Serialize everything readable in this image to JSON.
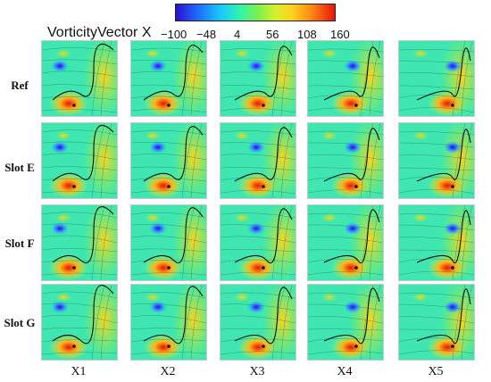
{
  "colorbar": {
    "title": "VorticityVector X",
    "ticks": [
      "−100",
      "−48",
      "4",
      "56",
      "108",
      "160"
    ],
    "colors": [
      "#2a0fd0",
      "#1e6cff",
      "#19c8ff",
      "#2ef2b0",
      "#7cf24a",
      "#d8f02a",
      "#ffd21e",
      "#ff8a12",
      "#e8140c"
    ]
  },
  "rows": [
    {
      "label": "Ref"
    },
    {
      "label": "Slot E"
    },
    {
      "label": "Slot F"
    },
    {
      "label": "Slot G"
    }
  ],
  "columns": [
    {
      "label": "X1"
    },
    {
      "label": "X2"
    },
    {
      "label": "X3"
    },
    {
      "label": "X4"
    },
    {
      "label": "X5"
    }
  ]
}
